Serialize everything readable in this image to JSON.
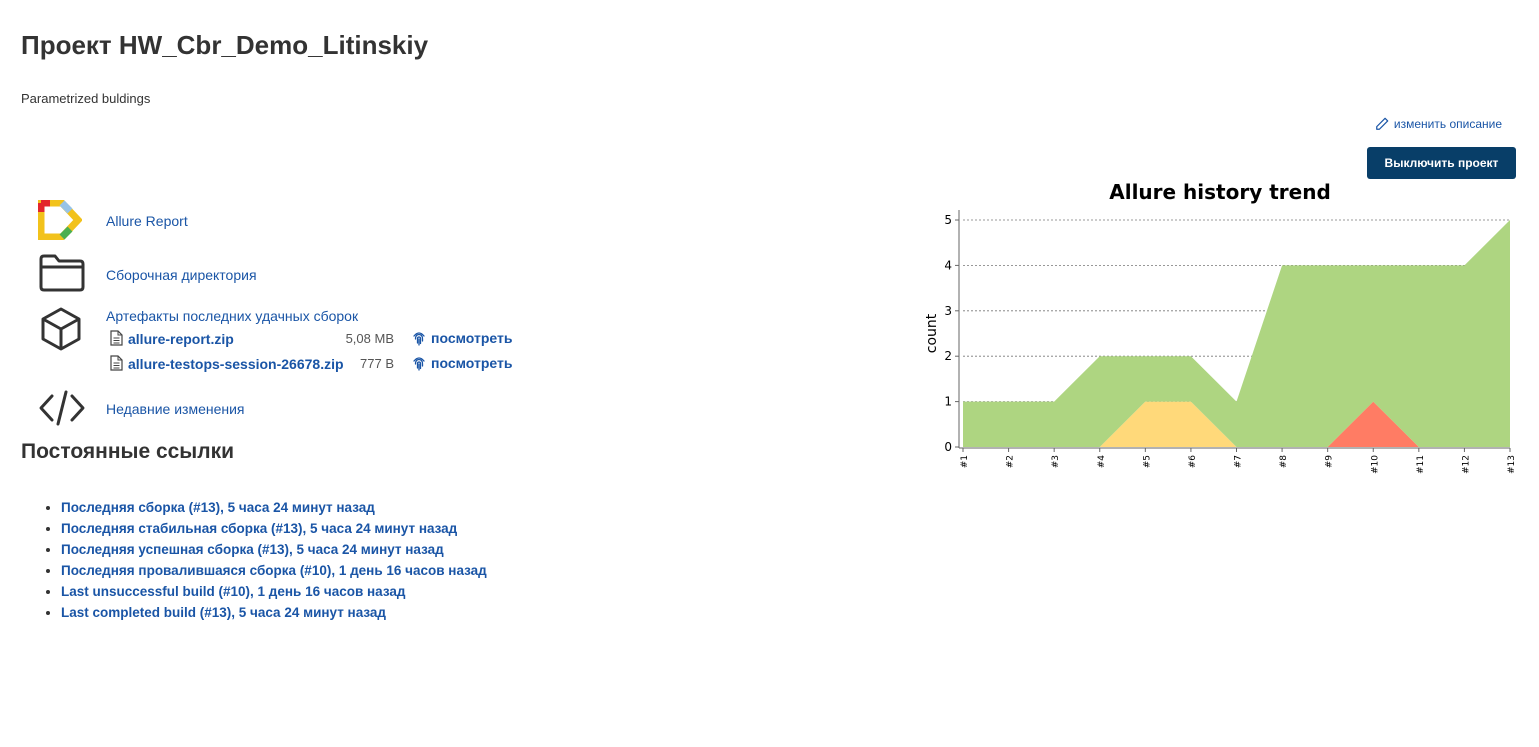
{
  "project": {
    "title": "Проект HW_Cbr_Demo_Litinskiy",
    "description": "Parametrized buldings",
    "edit_description_label": "изменить описание",
    "disable_button_label": "Выключить проект"
  },
  "tasks": {
    "allure_report": "Allure Report",
    "workspace": "Сборочная директория",
    "artifacts_title": "Артефакты последних удачных сборок",
    "recent_changes": "Недавние изменения"
  },
  "artifacts": [
    {
      "name": "allure-report.zip",
      "size": "5,08 MB",
      "view_label": "посмотреть"
    },
    {
      "name": "allure-testops-session-26678.zip",
      "size": "777 B",
      "view_label": "посмотреть"
    }
  ],
  "permalinks": {
    "title": "Постоянные ссылки",
    "items": [
      "Последняя сборка (#13), 5 часа 24 минут назад",
      "Последняя стабильная сборка (#13), 5 часа 24 минут назад",
      "Последняя успешная сборка (#13), 5 часа 24 минут назад",
      "Последняя провалившаяся сборка (#10), 1 день 16 часов назад",
      "Last unsuccessful build (#10), 1 день 16 часов назад",
      "Last completed build (#13), 5 часа 24 минут назад"
    ]
  },
  "colors": {
    "link": "#1a55a6",
    "button_bg": "#083e68",
    "passed": "#aed581",
    "broken": "#ffd97a",
    "failed": "#ff7c64"
  },
  "icons": [
    "allure-logo-icon",
    "folder-icon",
    "package-icon",
    "code-icon",
    "pencil-icon",
    "file-icon",
    "fingerprint-icon"
  ],
  "chart_data": {
    "type": "area",
    "title": "Allure history trend",
    "xlabel": "",
    "ylabel": "count",
    "categories": [
      "#1",
      "#2",
      "#3",
      "#4",
      "#5",
      "#6",
      "#7",
      "#8",
      "#9",
      "#10",
      "#11",
      "#12",
      "#13"
    ],
    "ylim": [
      0,
      5
    ],
    "yticks": [
      0,
      1,
      2,
      3,
      4,
      5
    ],
    "grid": true,
    "stacked": true,
    "series": [
      {
        "color": "#ff7c64",
        "values": [
          0,
          0,
          0,
          0,
          0,
          0,
          0,
          0,
          0,
          1,
          0,
          0,
          0
        ]
      },
      {
        "color": "#ffd97a",
        "values": [
          0,
          0,
          0,
          0,
          1,
          1,
          0,
          0,
          0,
          0,
          0,
          0,
          0
        ]
      },
      {
        "color": "#aed581",
        "values": [
          1,
          1,
          1,
          2,
          1,
          1,
          1,
          4,
          4,
          3,
          4,
          4,
          5
        ]
      }
    ]
  }
}
